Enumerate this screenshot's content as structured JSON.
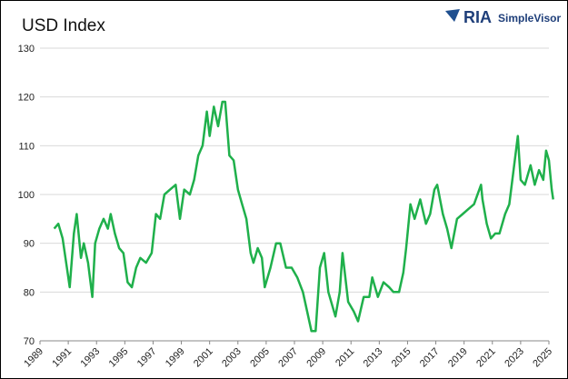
{
  "chart_data": {
    "type": "line",
    "title": "USD Index",
    "logo": {
      "brand": "RIA",
      "product": "SimpleVisor"
    },
    "x": [
      1990.0,
      1990.3,
      1990.6,
      1990.9,
      1991.1,
      1991.4,
      1991.6,
      1991.9,
      1992.1,
      1992.4,
      1992.7,
      1992.9,
      1993.2,
      1993.5,
      1993.8,
      1994.0,
      1994.3,
      1994.6,
      1994.9,
      1995.2,
      1995.5,
      1995.8,
      1996.1,
      1996.5,
      1996.9,
      1997.2,
      1997.5,
      1997.8,
      1998.2,
      1998.6,
      1998.9,
      1999.2,
      1999.6,
      1999.9,
      2000.2,
      2000.5,
      2000.8,
      2001.0,
      2001.3,
      2001.6,
      2001.9,
      2002.1,
      2002.4,
      2002.7,
      2003.0,
      2003.3,
      2003.6,
      2003.9,
      2004.1,
      2004.4,
      2004.7,
      2004.9,
      2005.3,
      2005.7,
      2006.0,
      2006.4,
      2006.8,
      2007.2,
      2007.6,
      2007.9,
      2008.2,
      2008.5,
      2008.8,
      2009.1,
      2009.4,
      2009.9,
      2010.2,
      2010.4,
      2010.8,
      2011.2,
      2011.5,
      2011.9,
      2012.3,
      2012.5,
      2012.9,
      2013.3,
      2013.7,
      2014.0,
      2014.4,
      2014.7,
      2014.9,
      2015.2,
      2015.5,
      2015.9,
      2016.3,
      2016.6,
      2016.9,
      2017.1,
      2017.5,
      2017.8,
      2018.1,
      2018.5,
      2018.9,
      2019.3,
      2019.7,
      2020.2,
      2020.3,
      2020.6,
      2020.9,
      2021.2,
      2021.5,
      2021.9,
      2022.2,
      2022.5,
      2022.8,
      2023.0,
      2023.3,
      2023.7,
      2024.0,
      2024.3,
      2024.6,
      2024.8,
      2025.0,
      2025.2,
      2025.3
    ],
    "series": [
      {
        "name": "USD Index",
        "color": "#1fb04b",
        "values": [
          93,
          94,
          91,
          85,
          81,
          92,
          96,
          87,
          90,
          86,
          79,
          90,
          93,
          95,
          93,
          96,
          92,
          89,
          88,
          82,
          81,
          85,
          87,
          86,
          88,
          96,
          95,
          100,
          101,
          102,
          95,
          101,
          100,
          103,
          108,
          110,
          117,
          112,
          118,
          114,
          119,
          119,
          108,
          107,
          101,
          98,
          95,
          88,
          86,
          89,
          87,
          81,
          85,
          90,
          90,
          85,
          85,
          83,
          80,
          76,
          72,
          72,
          85,
          88,
          80,
          75,
          80,
          88,
          78,
          76,
          74,
          79,
          79,
          83,
          79,
          82,
          81,
          80,
          80,
          84,
          89,
          98,
          95,
          99,
          94,
          96,
          101,
          102,
          96,
          93,
          89,
          95,
          96,
          97,
          98,
          102,
          99,
          94,
          91,
          92,
          92,
          96,
          98,
          105,
          112,
          103,
          102,
          106,
          102,
          105,
          103,
          109,
          107,
          101,
          99
        ]
      }
    ],
    "xlim": [
      1989,
      2025
    ],
    "xticks": [
      1989,
      1991,
      1993,
      1995,
      1997,
      1999,
      2001,
      2003,
      2005,
      2007,
      2009,
      2011,
      2013,
      2015,
      2017,
      2019,
      2021,
      2023,
      2025
    ],
    "ylim": [
      70,
      130
    ],
    "yticks": [
      70,
      80,
      90,
      100,
      110,
      120,
      130
    ],
    "grid": true
  }
}
